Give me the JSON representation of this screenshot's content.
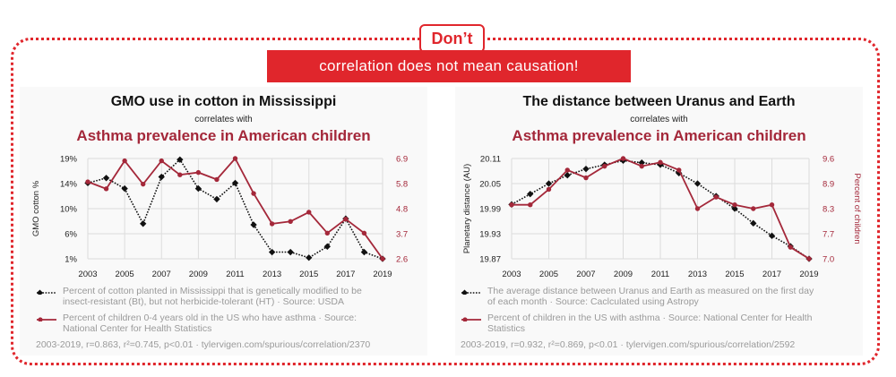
{
  "banner": {
    "top_label": "Don’t",
    "main_label": "correlation does not mean causation!"
  },
  "colors": {
    "accent": "#e0262c",
    "series_black": "#111111",
    "series_red": "#a4283a",
    "legend_text": "#9a9a9a"
  },
  "chart_data": [
    {
      "type": "line",
      "title": "GMO use in cotton in Mississippi",
      "subtitle": "correlates with",
      "title2": "Asthma prevalence in American children",
      "x": [
        2003,
        2004,
        2005,
        2006,
        2007,
        2008,
        2009,
        2010,
        2011,
        2012,
        2013,
        2014,
        2015,
        2016,
        2017,
        2018,
        2019
      ],
      "xticks": [
        "2003",
        "2005",
        "2007",
        "2009",
        "2011",
        "2013",
        "2015",
        "2017",
        "2019"
      ],
      "ylabel_left": "GMO cotton %",
      "ylabel_right": "Percent of children",
      "yticks_left": [
        "19%",
        "14%",
        "10%",
        "6%",
        "1%"
      ],
      "yticks_right": [
        "6.9",
        "5.8",
        "4.8",
        "3.7",
        "2.6"
      ],
      "ylim_left": [
        1,
        19
      ],
      "ylim_right": [
        2.6,
        6.9
      ],
      "grid": true,
      "series": [
        {
          "name": "Percent of cotton planted in Mississippi that is genetically modified to be insect-resistant (Bt), but not herbicide-tolerant (HT) · Source: USDA",
          "axis": "left",
          "style": "dotted-diamond",
          "values": [
            14.6,
            15.5,
            13.6,
            7.3,
            15.7,
            18.8,
            13.6,
            11.7,
            14.6,
            7.1,
            2.2,
            2.2,
            1.2,
            3.2,
            8.2,
            2.2,
            1.0
          ]
        },
        {
          "name": "Percent of children 0-4 years old in the US who have asthma · Source: National Center for Health Statistics",
          "axis": "right",
          "style": "solid-circle",
          "values": [
            5.9,
            5.6,
            6.8,
            5.8,
            6.8,
            6.2,
            6.3,
            6.0,
            6.9,
            5.4,
            4.1,
            4.2,
            4.6,
            3.7,
            4.3,
            3.7,
            2.6
          ]
        }
      ],
      "footer": "2003-2019, r=0.863, r²=0.745, p<0.01 · tylervigen.com/spurious/correlation/2370"
    },
    {
      "type": "line",
      "title": "The distance between Uranus and Earth",
      "subtitle": "correlates with",
      "title2": "Asthma prevalence in American children",
      "x": [
        2003,
        2004,
        2005,
        2006,
        2007,
        2008,
        2009,
        2010,
        2011,
        2012,
        2013,
        2014,
        2015,
        2016,
        2017,
        2018,
        2019
      ],
      "xticks": [
        "2003",
        "2005",
        "2007",
        "2009",
        "2011",
        "2013",
        "2015",
        "2017",
        "2019"
      ],
      "ylabel_left": "Planetary distance (AU)",
      "ylabel_right": "Percent of children",
      "yticks_left": [
        "20.11",
        "20.05",
        "19.99",
        "19.93",
        "19.87"
      ],
      "yticks_right": [
        "9.6",
        "8.9",
        "8.3",
        "7.7",
        "7.0"
      ],
      "ylim_left": [
        19.87,
        20.11
      ],
      "ylim_right": [
        7.0,
        9.6
      ],
      "grid": true,
      "series": [
        {
          "name": "The average distance between Uranus and Earth as measured on the first day of each month · Source: Caclculated using Astropy",
          "axis": "left",
          "style": "dotted-diamond",
          "values": [
            20.0,
            20.025,
            20.05,
            20.07,
            20.085,
            20.095,
            20.105,
            20.1,
            20.095,
            20.075,
            20.05,
            20.02,
            19.99,
            19.955,
            19.925,
            19.9,
            19.87
          ]
        },
        {
          "name": "Percent of children in the US with asthma · Source: National Center for Health Statistics",
          "axis": "right",
          "style": "solid-circle",
          "values": [
            8.4,
            8.4,
            8.8,
            9.3,
            9.1,
            9.4,
            9.6,
            9.4,
            9.5,
            9.3,
            8.3,
            8.6,
            8.4,
            8.3,
            8.4,
            7.3,
            7.0
          ]
        }
      ],
      "footer": "2003-2019, r=0.932, r²=0.869, p<0.01 · tylervigen.com/spurious/correlation/2592"
    }
  ]
}
